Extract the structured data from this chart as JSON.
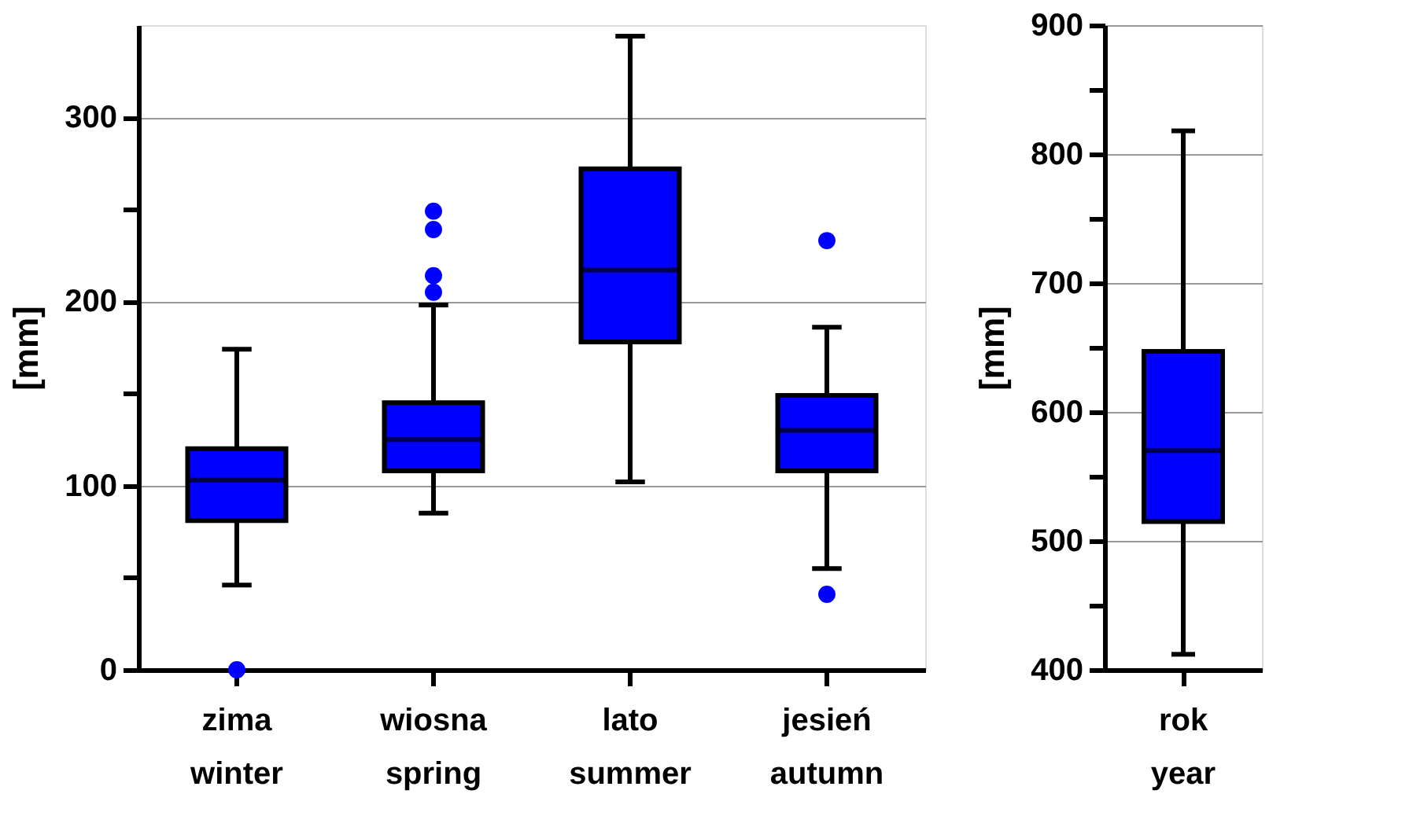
{
  "chart_data": [
    {
      "type": "box",
      "ylabel": "[mm]",
      "categories": [
        "zima\nwinter",
        "wiosna\nspring",
        "lato\nsummer",
        "jesień\nautumn"
      ],
      "color": "#0000ff",
      "grid": "y",
      "ylim": [
        0,
        350
      ],
      "yticks": [
        0,
        {
          "value": 50,
          "label": null
        },
        100,
        {
          "value": 150,
          "label": null
        },
        200,
        {
          "value": 250,
          "label": null
        },
        300
      ],
      "boxes": [
        {
          "low": 46,
          "q1": 81,
          "median": 103,
          "q3": 120,
          "high": 174,
          "outliers": [
            0
          ]
        },
        {
          "low": 85,
          "q1": 108,
          "median": 125,
          "q3": 145,
          "high": 198,
          "outliers": [
            249,
            239,
            214,
            205
          ]
        },
        {
          "low": 102,
          "q1": 178,
          "median": 217,
          "q3": 272,
          "high": 344
        },
        {
          "low": 55,
          "q1": 108,
          "median": 130,
          "q3": 149,
          "high": 186,
          "outliers": [
            233,
            41
          ]
        }
      ]
    },
    {
      "type": "box",
      "ylabel": "[mm]",
      "categories": [
        "rok\nyear"
      ],
      "color": "#0000ff",
      "grid": "y",
      "ylim": [
        400,
        900
      ],
      "yticks": [
        400,
        {
          "value": 450,
          "label": null
        },
        500,
        {
          "value": 550,
          "label": null
        },
        600,
        {
          "value": 650,
          "label": null
        },
        700,
        {
          "value": 750,
          "label": null
        },
        800,
        {
          "value": 850,
          "label": null
        },
        900
      ],
      "boxes": [
        {
          "low": 412,
          "q1": 515,
          "median": 570,
          "q3": 647,
          "high": 818
        }
      ]
    }
  ]
}
